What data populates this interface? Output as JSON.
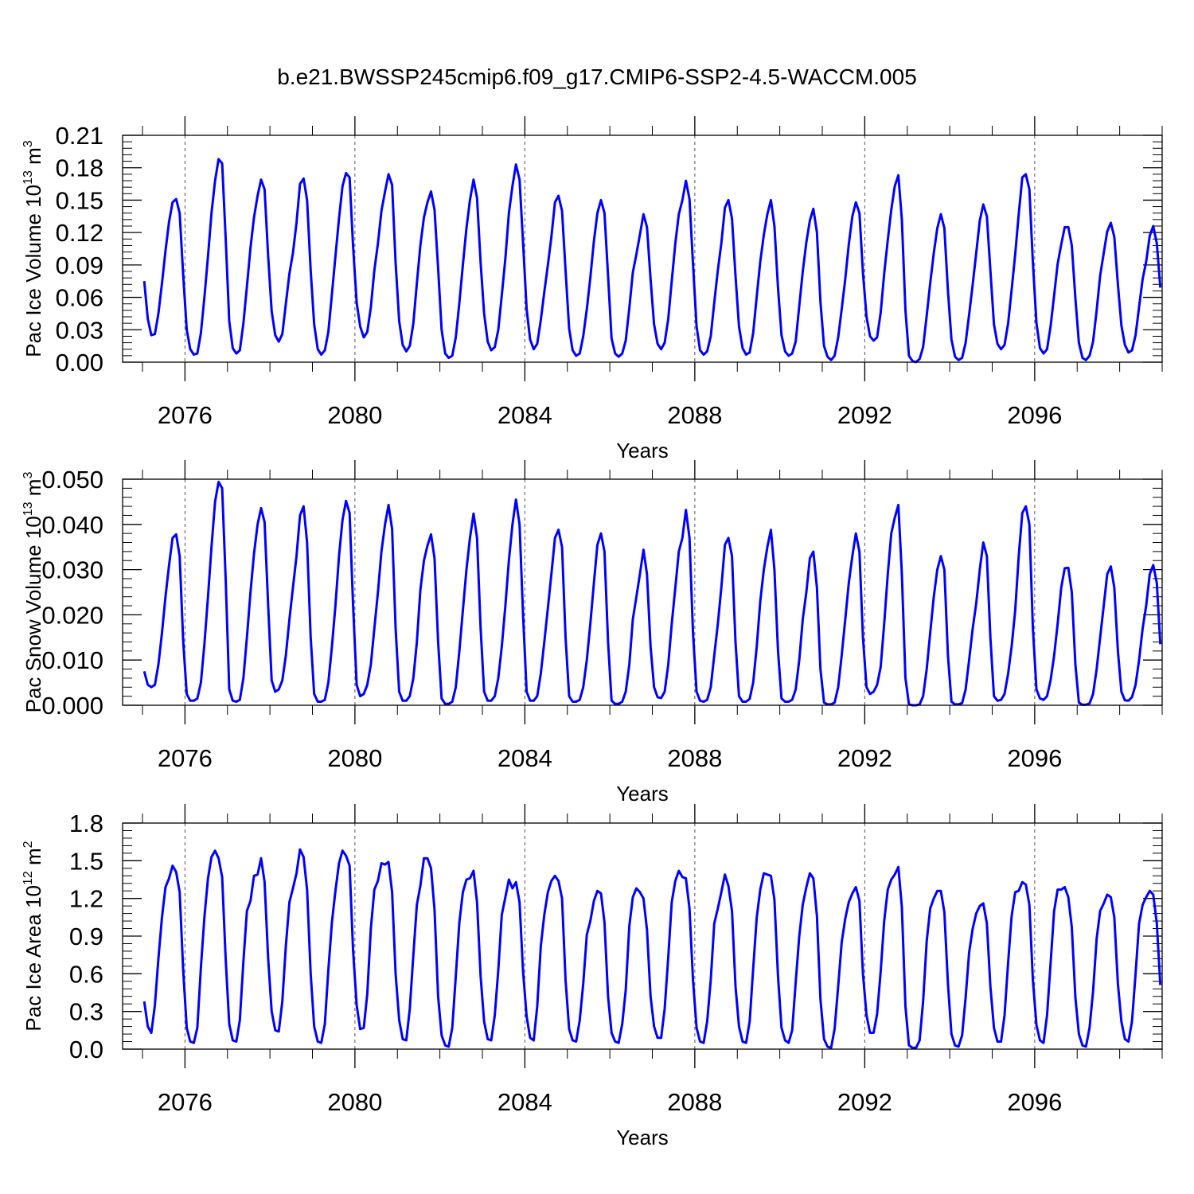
{
  "title": "b.e21.BWSSP245cmip6.f09_g17.CMIP6-SSP2-4.5-WACCM.005",
  "series_color": "#0000ff",
  "chart_data": [
    {
      "type": "line",
      "ylabel": "Pac Ice Volume 10",
      "ylabel_sup": "13",
      "ylabel_unit": " m",
      "ylabel_unit_sup": "3",
      "xlabel": "Years",
      "xlim": [
        2075.0,
        2099.0
      ],
      "ylim": [
        0.0,
        0.21
      ],
      "x_ticks": [
        2076,
        2080,
        2084,
        2088,
        2092,
        2096
      ],
      "x_tick_labels": [
        "2076",
        "2080",
        "2084",
        "2088",
        "2092",
        "2096"
      ],
      "y_ticks": [
        0.0,
        0.03,
        0.06,
        0.09,
        0.12,
        0.15,
        0.18,
        0.21
      ],
      "y_tick_labels": [
        "0.00",
        "0.03",
        "0.06",
        "0.09",
        "0.12",
        "0.15",
        "0.18",
        "0.21"
      ],
      "x_start": 2075.0417,
      "x_step": 0.08333,
      "values": [
        0.075,
        0.04,
        0.025,
        0.026,
        0.045,
        0.073,
        0.103,
        0.13,
        0.148,
        0.151,
        0.138,
        0.08,
        0.03,
        0.012,
        0.007,
        0.008,
        0.027,
        0.06,
        0.098,
        0.138,
        0.168,
        0.188,
        0.184,
        0.115,
        0.038,
        0.013,
        0.008,
        0.011,
        0.036,
        0.07,
        0.106,
        0.134,
        0.154,
        0.169,
        0.16,
        0.098,
        0.047,
        0.025,
        0.019,
        0.026,
        0.054,
        0.082,
        0.101,
        0.129,
        0.165,
        0.17,
        0.15,
        0.085,
        0.035,
        0.012,
        0.007,
        0.011,
        0.028,
        0.063,
        0.098,
        0.133,
        0.163,
        0.175,
        0.171,
        0.107,
        0.055,
        0.033,
        0.023,
        0.028,
        0.051,
        0.085,
        0.11,
        0.14,
        0.158,
        0.174,
        0.164,
        0.092,
        0.038,
        0.016,
        0.01,
        0.015,
        0.036,
        0.073,
        0.108,
        0.134,
        0.148,
        0.158,
        0.141,
        0.087,
        0.03,
        0.008,
        0.004,
        0.006,
        0.023,
        0.055,
        0.09,
        0.124,
        0.15,
        0.169,
        0.152,
        0.092,
        0.045,
        0.019,
        0.011,
        0.014,
        0.03,
        0.062,
        0.096,
        0.138,
        0.163,
        0.183,
        0.169,
        0.111,
        0.049,
        0.021,
        0.012,
        0.017,
        0.039,
        0.065,
        0.09,
        0.116,
        0.148,
        0.154,
        0.14,
        0.085,
        0.031,
        0.011,
        0.006,
        0.008,
        0.024,
        0.049,
        0.078,
        0.112,
        0.138,
        0.15,
        0.138,
        0.08,
        0.022,
        0.008,
        0.005,
        0.008,
        0.02,
        0.05,
        0.083,
        0.1,
        0.118,
        0.137,
        0.125,
        0.077,
        0.035,
        0.017,
        0.012,
        0.018,
        0.04,
        0.075,
        0.11,
        0.137,
        0.15,
        0.168,
        0.151,
        0.091,
        0.033,
        0.011,
        0.007,
        0.01,
        0.024,
        0.055,
        0.085,
        0.11,
        0.143,
        0.15,
        0.133,
        0.08,
        0.033,
        0.013,
        0.007,
        0.009,
        0.027,
        0.061,
        0.093,
        0.118,
        0.137,
        0.15,
        0.126,
        0.069,
        0.025,
        0.01,
        0.006,
        0.008,
        0.019,
        0.052,
        0.084,
        0.111,
        0.131,
        0.142,
        0.12,
        0.056,
        0.015,
        0.005,
        0.002,
        0.006,
        0.023,
        0.049,
        0.077,
        0.109,
        0.135,
        0.148,
        0.138,
        0.083,
        0.042,
        0.024,
        0.02,
        0.023,
        0.046,
        0.082,
        0.113,
        0.141,
        0.163,
        0.173,
        0.132,
        0.048,
        0.006,
        0.001,
        0.0,
        0.003,
        0.014,
        0.043,
        0.073,
        0.101,
        0.124,
        0.137,
        0.124,
        0.066,
        0.021,
        0.005,
        0.002,
        0.004,
        0.018,
        0.044,
        0.072,
        0.101,
        0.131,
        0.146,
        0.135,
        0.085,
        0.035,
        0.017,
        0.012,
        0.016,
        0.036,
        0.067,
        0.1,
        0.137,
        0.171,
        0.174,
        0.16,
        0.092,
        0.036,
        0.013,
        0.008,
        0.012,
        0.033,
        0.062,
        0.091,
        0.109,
        0.125,
        0.125,
        0.108,
        0.059,
        0.018,
        0.004,
        0.002,
        0.006,
        0.019,
        0.048,
        0.08,
        0.101,
        0.121,
        0.129,
        0.116,
        0.072,
        0.034,
        0.016,
        0.009,
        0.011,
        0.025,
        0.051,
        0.077,
        0.093,
        0.117,
        0.126,
        0.11,
        0.069
      ]
    },
    {
      "type": "line",
      "ylabel": "Pac Snow Volume 10",
      "ylabel_sup": "13",
      "ylabel_unit": " m",
      "ylabel_unit_sup": "3",
      "xlabel": "Years",
      "xlim": [
        2075.0,
        2099.0
      ],
      "ylim": [
        0.0,
        0.05
      ],
      "x_ticks": [
        2076,
        2080,
        2084,
        2088,
        2092,
        2096
      ],
      "x_tick_labels": [
        "2076",
        "2080",
        "2084",
        "2088",
        "2092",
        "2096"
      ],
      "y_ticks": [
        0.0,
        0.01,
        0.02,
        0.03,
        0.04,
        0.05
      ],
      "y_tick_labels": [
        "0.000",
        "0.010",
        "0.020",
        "0.030",
        "0.040",
        "0.050"
      ],
      "x_start": 2075.0417,
      "x_step": 0.08333,
      "values": [
        0.0075,
        0.0045,
        0.004,
        0.0045,
        0.009,
        0.016,
        0.024,
        0.031,
        0.037,
        0.0378,
        0.033,
        0.014,
        0.0025,
        0.001,
        0.001,
        0.0015,
        0.005,
        0.0135,
        0.024,
        0.035,
        0.045,
        0.0494,
        0.048,
        0.028,
        0.0035,
        0.001,
        0.0008,
        0.0012,
        0.006,
        0.015,
        0.025,
        0.0335,
        0.04,
        0.0436,
        0.0405,
        0.022,
        0.0055,
        0.003,
        0.0035,
        0.0055,
        0.011,
        0.019,
        0.026,
        0.033,
        0.042,
        0.044,
        0.036,
        0.015,
        0.0025,
        0.0008,
        0.0008,
        0.0012,
        0.005,
        0.013,
        0.022,
        0.033,
        0.041,
        0.0452,
        0.0425,
        0.022,
        0.0045,
        0.002,
        0.0025,
        0.0045,
        0.009,
        0.017,
        0.025,
        0.034,
        0.04,
        0.0443,
        0.039,
        0.017,
        0.003,
        0.001,
        0.001,
        0.002,
        0.006,
        0.014,
        0.0255,
        0.032,
        0.0353,
        0.0378,
        0.0325,
        0.014,
        0.0015,
        0.0003,
        0.0003,
        0.0008,
        0.004,
        0.012,
        0.021,
        0.03,
        0.037,
        0.0424,
        0.037,
        0.017,
        0.003,
        0.001,
        0.001,
        0.002,
        0.006,
        0.013,
        0.022,
        0.032,
        0.04,
        0.0455,
        0.04,
        0.02,
        0.003,
        0.001,
        0.001,
        0.002,
        0.007,
        0.014,
        0.0215,
        0.029,
        0.037,
        0.0388,
        0.035,
        0.015,
        0.002,
        0.0008,
        0.0008,
        0.0012,
        0.004,
        0.01,
        0.018,
        0.027,
        0.0355,
        0.038,
        0.034,
        0.014,
        0.001,
        0.0003,
        0.0003,
        0.0008,
        0.003,
        0.009,
        0.019,
        0.024,
        0.029,
        0.0344,
        0.029,
        0.013,
        0.004,
        0.0018,
        0.0016,
        0.003,
        0.009,
        0.018,
        0.026,
        0.034,
        0.037,
        0.0432,
        0.037,
        0.016,
        0.003,
        0.001,
        0.0008,
        0.0012,
        0.004,
        0.011,
        0.018,
        0.026,
        0.0355,
        0.037,
        0.033,
        0.014,
        0.002,
        0.0008,
        0.0008,
        0.0014,
        0.005,
        0.013,
        0.023,
        0.03,
        0.035,
        0.0388,
        0.03,
        0.012,
        0.0015,
        0.0008,
        0.0008,
        0.0012,
        0.0035,
        0.01,
        0.019,
        0.025,
        0.0325,
        0.034,
        0.026,
        0.008,
        0.0006,
        0.0002,
        0.0002,
        0.0006,
        0.004,
        0.011,
        0.019,
        0.027,
        0.033,
        0.038,
        0.034,
        0.015,
        0.004,
        0.0025,
        0.003,
        0.0045,
        0.0085,
        0.018,
        0.029,
        0.038,
        0.0415,
        0.0443,
        0.029,
        0.006,
        0.0002,
        0.0,
        0.0,
        0.0002,
        0.002,
        0.008,
        0.016,
        0.024,
        0.03,
        0.033,
        0.03,
        0.011,
        0.0008,
        0.0002,
        0.0002,
        0.0005,
        0.0035,
        0.01,
        0.017,
        0.0225,
        0.03,
        0.036,
        0.033,
        0.015,
        0.002,
        0.001,
        0.0012,
        0.0025,
        0.007,
        0.013,
        0.021,
        0.033,
        0.0425,
        0.044,
        0.04,
        0.017,
        0.0035,
        0.0015,
        0.0012,
        0.002,
        0.0055,
        0.011,
        0.018,
        0.026,
        0.0303,
        0.0304,
        0.025,
        0.009,
        0.0006,
        0.0001,
        0.0001,
        0.0004,
        0.0025,
        0.008,
        0.015,
        0.022,
        0.029,
        0.0307,
        0.026,
        0.012,
        0.003,
        0.0011,
        0.001,
        0.0018,
        0.0045,
        0.01,
        0.017,
        0.022,
        0.029,
        0.031,
        0.027,
        0.0135
      ]
    },
    {
      "type": "line",
      "ylabel": "Pac Ice Area 10",
      "ylabel_sup": "12",
      "ylabel_unit": " m",
      "ylabel_unit_sup": "2",
      "xlabel": "Years",
      "xlim": [
        2075.0,
        2099.0
      ],
      "ylim": [
        0.0,
        1.8
      ],
      "x_ticks": [
        2076,
        2080,
        2084,
        2088,
        2092,
        2096
      ],
      "x_tick_labels": [
        "2076",
        "2080",
        "2084",
        "2088",
        "2092",
        "2096"
      ],
      "y_ticks": [
        0.0,
        0.3,
        0.6,
        0.9,
        1.2,
        1.5,
        1.8
      ],
      "y_tick_labels": [
        "0.0",
        "0.3",
        "0.6",
        "0.9",
        "1.2",
        "1.5",
        "1.8"
      ],
      "x_start": 2075.0417,
      "x_step": 0.08333,
      "values": [
        0.38,
        0.18,
        0.13,
        0.35,
        0.72,
        1.05,
        1.29,
        1.36,
        1.46,
        1.41,
        1.25,
        0.62,
        0.17,
        0.06,
        0.05,
        0.17,
        0.65,
        1.05,
        1.36,
        1.53,
        1.58,
        1.52,
        1.37,
        0.72,
        0.2,
        0.07,
        0.06,
        0.23,
        0.7,
        1.1,
        1.18,
        1.38,
        1.39,
        1.52,
        1.33,
        0.72,
        0.3,
        0.15,
        0.14,
        0.38,
        0.82,
        1.17,
        1.28,
        1.4,
        1.59,
        1.53,
        1.27,
        0.6,
        0.18,
        0.06,
        0.05,
        0.2,
        0.63,
        1.01,
        1.26,
        1.48,
        1.58,
        1.54,
        1.46,
        0.78,
        0.35,
        0.16,
        0.17,
        0.44,
        0.96,
        1.27,
        1.34,
        1.48,
        1.47,
        1.49,
        1.25,
        0.6,
        0.23,
        0.08,
        0.07,
        0.32,
        0.75,
        1.15,
        1.3,
        1.52,
        1.52,
        1.44,
        1.11,
        0.42,
        0.11,
        0.03,
        0.02,
        0.17,
        0.58,
        1.01,
        1.25,
        1.35,
        1.36,
        1.42,
        1.17,
        0.58,
        0.22,
        0.08,
        0.07,
        0.27,
        0.63,
        1.07,
        1.21,
        1.35,
        1.28,
        1.33,
        1.17,
        0.62,
        0.26,
        0.09,
        0.07,
        0.34,
        0.82,
        1.07,
        1.25,
        1.34,
        1.38,
        1.34,
        1.2,
        0.55,
        0.16,
        0.07,
        0.06,
        0.23,
        0.52,
        0.91,
        1.02,
        1.18,
        1.26,
        1.24,
        1.01,
        0.42,
        0.13,
        0.06,
        0.05,
        0.2,
        0.47,
        0.98,
        1.21,
        1.28,
        1.25,
        1.2,
        0.95,
        0.42,
        0.18,
        0.09,
        0.09,
        0.32,
        0.73,
        1.17,
        1.34,
        1.42,
        1.37,
        1.36,
        1.12,
        0.55,
        0.17,
        0.06,
        0.05,
        0.22,
        0.55,
        1.0,
        1.12,
        1.25,
        1.39,
        1.3,
        1.1,
        0.5,
        0.18,
        0.06,
        0.05,
        0.22,
        0.64,
        1.05,
        1.27,
        1.4,
        1.39,
        1.38,
        1.19,
        0.58,
        0.17,
        0.07,
        0.05,
        0.15,
        0.53,
        0.9,
        1.15,
        1.29,
        1.4,
        1.36,
        1.06,
        0.4,
        0.08,
        0.02,
        0.01,
        0.16,
        0.5,
        0.85,
        1.04,
        1.17,
        1.24,
        1.29,
        1.18,
        0.6,
        0.27,
        0.13,
        0.13,
        0.28,
        0.62,
        1.02,
        1.27,
        1.35,
        1.39,
        1.45,
        1.13,
        0.34,
        0.03,
        0.01,
        0.01,
        0.07,
        0.38,
        0.86,
        1.12,
        1.2,
        1.26,
        1.26,
        1.09,
        0.52,
        0.12,
        0.03,
        0.02,
        0.11,
        0.41,
        0.77,
        0.96,
        1.08,
        1.14,
        1.16,
        1.0,
        0.5,
        0.17,
        0.06,
        0.06,
        0.27,
        0.69,
        1.06,
        1.25,
        1.26,
        1.33,
        1.31,
        1.15,
        0.55,
        0.19,
        0.07,
        0.05,
        0.27,
        0.68,
        1.1,
        1.27,
        1.27,
        1.29,
        1.21,
        0.97,
        0.41,
        0.12,
        0.03,
        0.02,
        0.17,
        0.46,
        0.88,
        1.1,
        1.16,
        1.23,
        1.21,
        1.05,
        0.52,
        0.22,
        0.08,
        0.06,
        0.22,
        0.6,
        1.0,
        1.15,
        1.21,
        1.26,
        1.23,
        1.0,
        0.51
      ]
    }
  ]
}
